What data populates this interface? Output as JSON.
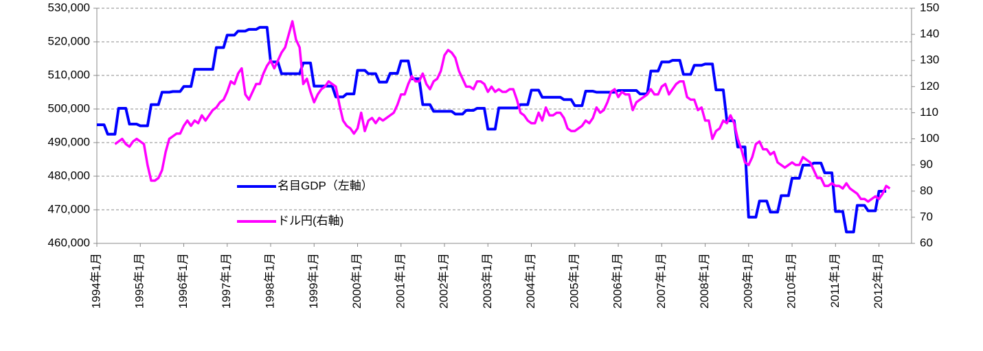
{
  "chart_data": {
    "type": "line",
    "categories": [
      "1994年1月",
      null,
      null,
      null,
      null,
      null,
      null,
      null,
      null,
      null,
      null,
      null,
      "1995年1月",
      null,
      null,
      null,
      null,
      null,
      null,
      null,
      null,
      null,
      null,
      null,
      "1996年1月",
      null,
      null,
      null,
      null,
      null,
      null,
      null,
      null,
      null,
      null,
      null,
      "1997年1月",
      null,
      null,
      null,
      null,
      null,
      null,
      null,
      null,
      null,
      null,
      null,
      "1998年1月",
      null,
      null,
      null,
      null,
      null,
      null,
      null,
      null,
      null,
      null,
      null,
      "1999年1月",
      null,
      null,
      null,
      null,
      null,
      null,
      null,
      null,
      null,
      null,
      null,
      "2000年1月",
      null,
      null,
      null,
      null,
      null,
      null,
      null,
      null,
      null,
      null,
      null,
      "2001年1月",
      null,
      null,
      null,
      null,
      null,
      null,
      null,
      null,
      null,
      null,
      null,
      "2002年1月",
      null,
      null,
      null,
      null,
      null,
      null,
      null,
      null,
      null,
      null,
      null,
      "2003年1月",
      null,
      null,
      null,
      null,
      null,
      null,
      null,
      null,
      null,
      null,
      null,
      "2004年1月",
      null,
      null,
      null,
      null,
      null,
      null,
      null,
      null,
      null,
      null,
      null,
      "2005年1月",
      null,
      null,
      null,
      null,
      null,
      null,
      null,
      null,
      null,
      null,
      null,
      "2006年1月",
      null,
      null,
      null,
      null,
      null,
      null,
      null,
      null,
      null,
      null,
      null,
      "2007年1月",
      null,
      null,
      null,
      null,
      null,
      null,
      null,
      null,
      null,
      null,
      null,
      "2008年1月",
      null,
      null,
      null,
      null,
      null,
      null,
      null,
      null,
      null,
      null,
      null,
      "2009年1月",
      null,
      null,
      null,
      null,
      null,
      null,
      null,
      null,
      null,
      null,
      null,
      "2010年1月",
      null,
      null,
      null,
      null,
      null,
      null,
      null,
      null,
      null,
      null,
      null,
      "2011年1月",
      null,
      null,
      null,
      null,
      null,
      null,
      null,
      null,
      null,
      null,
      null,
      "2012年1月",
      null,
      null,
      null
    ],
    "series": [
      {
        "name": "名目GDP（左軸）",
        "color": "#0000ff",
        "values": [
          495300,
          495300,
          495300,
          492500,
          492500,
          492500,
          500200,
          500200,
          500200,
          495500,
          495500,
          495500,
          495000,
          495000,
          495000,
          501300,
          501300,
          501300,
          505000,
          505000,
          505000,
          505200,
          505200,
          505200,
          506700,
          506700,
          506700,
          511800,
          511800,
          511800,
          511800,
          511800,
          511800,
          518300,
          518300,
          518300,
          522000,
          522000,
          522000,
          523200,
          523200,
          523200,
          523700,
          523700,
          523700,
          524300,
          524300,
          524300,
          514000,
          514000,
          514000,
          510500,
          510500,
          510500,
          510500,
          510500,
          510500,
          513700,
          513700,
          513700,
          506800,
          506800,
          506800,
          506800,
          506800,
          506800,
          503600,
          503600,
          503600,
          504500,
          504500,
          504500,
          511500,
          511500,
          511500,
          510500,
          510500,
          510500,
          508000,
          508000,
          508000,
          510600,
          510600,
          510600,
          514300,
          514300,
          514300,
          509000,
          509000,
          509000,
          501300,
          501300,
          501300,
          499300,
          499300,
          499300,
          499300,
          499300,
          499300,
          498500,
          498500,
          498500,
          499600,
          499600,
          499600,
          500200,
          500200,
          500200,
          494000,
          494000,
          494000,
          500300,
          500300,
          500300,
          500300,
          500300,
          500300,
          501300,
          501300,
          501300,
          505600,
          505600,
          505600,
          503500,
          503500,
          503500,
          503500,
          503500,
          503500,
          502800,
          502800,
          502800,
          501000,
          501000,
          501000,
          505300,
          505300,
          505300,
          505000,
          505000,
          505000,
          505000,
          505000,
          505000,
          505500,
          505500,
          505500,
          505500,
          505500,
          505500,
          504500,
          504500,
          504500,
          511300,
          511300,
          511300,
          514000,
          514000,
          514000,
          514500,
          514500,
          514500,
          510300,
          510300,
          510300,
          513000,
          513000,
          513000,
          513400,
          513400,
          513400,
          505700,
          505700,
          505700,
          496500,
          496500,
          496500,
          488700,
          488700,
          488700,
          467800,
          467800,
          467800,
          472600,
          472600,
          472600,
          469300,
          469300,
          469300,
          474200,
          474200,
          474200,
          479400,
          479400,
          479400,
          483300,
          483300,
          483300,
          483900,
          483900,
          483900,
          481000,
          481000,
          481000,
          469500,
          469500,
          469500,
          463400,
          463400,
          463400,
          471300,
          471300,
          471300,
          469700,
          469700,
          469700,
          475500,
          475500,
          475500,
          null
        ]
      },
      {
        "name": "ドル円(右軸)",
        "color": "#ff00ff",
        "axis": "y2",
        "values": [
          null,
          null,
          null,
          null,
          null,
          98,
          99,
          100,
          98,
          97,
          99,
          100,
          99,
          98,
          90,
          84,
          84,
          85,
          88,
          95,
          100,
          101,
          102,
          102,
          105,
          107,
          105,
          107,
          106,
          109,
          107,
          109,
          111,
          112,
          114,
          115,
          118,
          122,
          121,
          125,
          127,
          117,
          115,
          118,
          121,
          121,
          125,
          128,
          130,
          127,
          130,
          133,
          135,
          140,
          145,
          138,
          135,
          121,
          123,
          118,
          114,
          117,
          119,
          120,
          122,
          121,
          120,
          113,
          107,
          105,
          104,
          102,
          104,
          110,
          103,
          107,
          108,
          106,
          108,
          107,
          108,
          109,
          110,
          113,
          117,
          117,
          121,
          124,
          122,
          122,
          125,
          121,
          119,
          122,
          123,
          126,
          132,
          134,
          133,
          131,
          126,
          123,
          120,
          120,
          119,
          122,
          122,
          121,
          118,
          120,
          118,
          119,
          118,
          118,
          119,
          119,
          115,
          110,
          109,
          107,
          106,
          106,
          110,
          107,
          112,
          109,
          109,
          110,
          110,
          108,
          104,
          103,
          103,
          104,
          105,
          107,
          106,
          108,
          112,
          110,
          111,
          114,
          118,
          119,
          116,
          118,
          117,
          117,
          111,
          114,
          115,
          116,
          117,
          119,
          117,
          117,
          120,
          121,
          117,
          119,
          121,
          122,
          122,
          116,
          115,
          115,
          111,
          112,
          107,
          107,
          100,
          103,
          104,
          107,
          106,
          109,
          106,
          100,
          96,
          91,
          90,
          93,
          98,
          99,
          96,
          96,
          94,
          95,
          91,
          90,
          89,
          90,
          91,
          90,
          90,
          93,
          92,
          91,
          88,
          85,
          85,
          82,
          82,
          83,
          82,
          82,
          81,
          83,
          81,
          80,
          79,
          77,
          77,
          76,
          77,
          78,
          77,
          79,
          82,
          81
        ]
      }
    ],
    "ylim": [
      460000,
      530000
    ],
    "yticks": [
      {
        "value": 460000,
        "label": "460,000"
      },
      {
        "value": 470000,
        "label": "470,000"
      },
      {
        "value": 480000,
        "label": "480,000"
      },
      {
        "value": 490000,
        "label": "490,000"
      },
      {
        "value": 500000,
        "label": "500,000"
      },
      {
        "value": 510000,
        "label": "510,000"
      },
      {
        "value": 520000,
        "label": "520,000"
      },
      {
        "value": 530000,
        "label": "530,000"
      }
    ],
    "y2lim": [
      60,
      150
    ],
    "y2ticks": [
      60,
      70,
      80,
      90,
      100,
      110,
      120,
      130,
      140,
      150
    ],
    "grid": true
  }
}
